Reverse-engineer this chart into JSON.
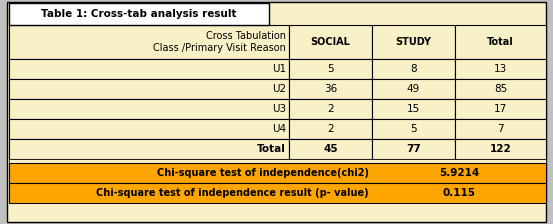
{
  "title": "Table 1: Cross-tab analysis result",
  "header_row": [
    "Cross Tabulation\nClass /Primary Visit Reason",
    "SOCIAL",
    "STUDY",
    "Total"
  ],
  "data_rows": [
    [
      "U1",
      "5",
      "8",
      "13"
    ],
    [
      "U2",
      "36",
      "49",
      "85"
    ],
    [
      "U3",
      "2",
      "15",
      "17"
    ],
    [
      "U4",
      "2",
      "5",
      "7"
    ],
    [
      "Total",
      "45",
      "77",
      "122"
    ]
  ],
  "chi_rows": [
    [
      "Chi-square test of independence(chi2)",
      "5.9214"
    ],
    [
      "Chi-square test of independence result (p- value)",
      "0.115"
    ]
  ],
  "bg_light": "#FAF0C8",
  "bg_orange": "#FFA500",
  "bg_white": "#FFFFFF",
  "bg_outer": "#C0C0C0",
  "border_color": "#000000",
  "title_box_color": "#FFFFFF",
  "figsize": [
    5.53,
    2.24
  ],
  "dpi": 100
}
